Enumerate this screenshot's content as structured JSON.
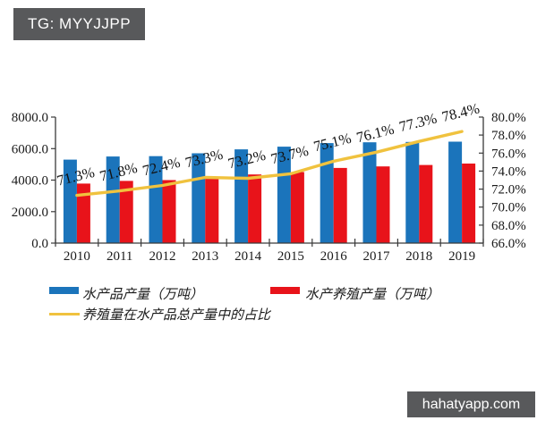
{
  "badge": {
    "text": "TG: MYYJJPP"
  },
  "watermark": {
    "text": "hahatyapp.com"
  },
  "colors": {
    "badge_bg": "#58595B",
    "watermark_bg": "#58595B",
    "axis": "#3a3a3a",
    "tick_text": "#1a1a1a",
    "point_label_text": "#111111"
  },
  "chart_data": {
    "type": "bar+line",
    "categories": [
      "2010",
      "2011",
      "2012",
      "2013",
      "2014",
      "2015",
      "2016",
      "2017",
      "2018",
      "2019"
    ],
    "series": [
      {
        "name": "水产品产量（万吨）",
        "type": "bar",
        "color": "#1B74BB",
        "values": [
          5300,
          5500,
          5520,
          5700,
          5950,
          6120,
          6350,
          6400,
          6420,
          6440
        ]
      },
      {
        "name": "水产养殖产量（万吨）",
        "type": "bar",
        "color": "#E8131A",
        "values": [
          3780,
          3950,
          4000,
          4180,
          4355,
          4510,
          4770,
          4870,
          4960,
          5050
        ]
      },
      {
        "name": "养殖量在水产品总产量中的占比",
        "type": "line",
        "color": "#F0C23E",
        "values": [
          71.3,
          71.8,
          72.4,
          73.3,
          73.2,
          73.7,
          75.1,
          76.1,
          77.3,
          78.4
        ],
        "point_labels": [
          "71.3%",
          "71.8%",
          "72.4%",
          "73.3%",
          "73.2%",
          "73.7%",
          "75.1%",
          "76.1%",
          "77.3%",
          "78.4%"
        ]
      }
    ],
    "left_axis": {
      "min": 0,
      "max": 8000,
      "tick_values": [
        8000,
        6000,
        4000,
        2000,
        0
      ],
      "tick_labels": [
        "8000.0",
        "6000.0",
        "4000.0",
        "2000.0",
        "0.0"
      ]
    },
    "right_axis": {
      "min": 66,
      "max": 80,
      "tick_values": [
        80,
        78,
        76,
        74,
        72,
        70,
        68,
        66
      ],
      "tick_labels": [
        "80.0%",
        "78.0%",
        "76.0%",
        "74.0%",
        "72.0%",
        "70.0%",
        "68.0%",
        "66.0%"
      ]
    },
    "grid": false,
    "legend_position": "bottom"
  }
}
